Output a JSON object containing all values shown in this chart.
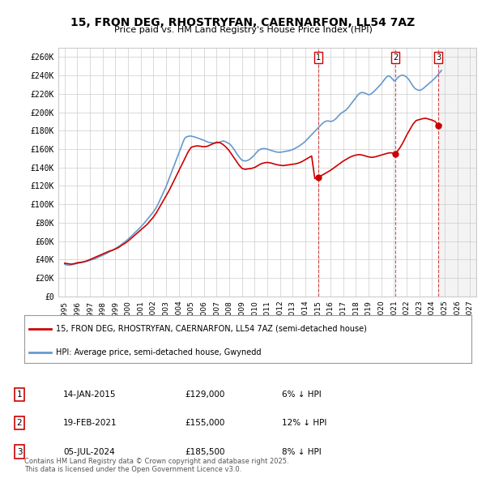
{
  "title": "15, FRON DEG, RHOSTRYFAN, CAERNARFON, LL54 7AZ",
  "subtitle": "Price paid vs. HM Land Registry's House Price Index (HPI)",
  "ylabel_ticks": [
    "£0",
    "£20K",
    "£40K",
    "£60K",
    "£80K",
    "£100K",
    "£120K",
    "£140K",
    "£160K",
    "£180K",
    "£200K",
    "£220K",
    "£240K",
    "£260K"
  ],
  "ytick_values": [
    0,
    20000,
    40000,
    60000,
    80000,
    100000,
    120000,
    140000,
    160000,
    180000,
    200000,
    220000,
    240000,
    260000
  ],
  "ylim": [
    0,
    270000
  ],
  "xlim_start": 1994.5,
  "xlim_end": 2027.5,
  "xtick_years": [
    1995,
    1996,
    1997,
    1998,
    1999,
    2000,
    2001,
    2002,
    2003,
    2004,
    2005,
    2006,
    2007,
    2008,
    2009,
    2010,
    2011,
    2012,
    2013,
    2014,
    2015,
    2016,
    2017,
    2018,
    2019,
    2020,
    2021,
    2022,
    2023,
    2024,
    2025,
    2026,
    2027
  ],
  "hpi_color": "#6699cc",
  "price_color": "#cc0000",
  "sale_marker_color": "#cc0000",
  "background_color": "#ffffff",
  "grid_color": "#cccccc",
  "legend_box_color": "#cc0000",
  "sales": [
    {
      "num": 1,
      "date_num": 2015.04,
      "price": 129000,
      "label": "1",
      "date_str": "14-JAN-2015",
      "price_str": "£129,000",
      "diff": "6% ↓ HPI"
    },
    {
      "num": 2,
      "date_num": 2021.13,
      "price": 155000,
      "label": "2",
      "date_str": "19-FEB-2021",
      "price_str": "£155,000",
      "diff": "12% ↓ HPI"
    },
    {
      "num": 3,
      "date_num": 2024.51,
      "price": 185500,
      "label": "3",
      "date_str": "05-JUL-2024",
      "price_str": "£185,500",
      "diff": "8% ↓ HPI"
    }
  ],
  "hpi_data": {
    "years": [
      1995.0,
      1995.08,
      1995.17,
      1995.25,
      1995.33,
      1995.42,
      1995.5,
      1995.58,
      1995.67,
      1995.75,
      1995.83,
      1995.92,
      1996.0,
      1996.08,
      1996.17,
      1996.25,
      1996.33,
      1996.42,
      1996.5,
      1996.58,
      1996.67,
      1996.75,
      1996.83,
      1996.92,
      1997.0,
      1997.08,
      1997.17,
      1997.25,
      1997.33,
      1997.42,
      1997.5,
      1997.58,
      1997.67,
      1997.75,
      1997.83,
      1997.92,
      1998.0,
      1998.08,
      1998.17,
      1998.25,
      1998.33,
      1998.42,
      1998.5,
      1998.58,
      1998.67,
      1998.75,
      1998.83,
      1998.92,
      1999.0,
      1999.08,
      1999.17,
      1999.25,
      1999.33,
      1999.42,
      1999.5,
      1999.58,
      1999.67,
      1999.75,
      1999.83,
      1999.92,
      2000.0,
      2000.08,
      2000.17,
      2000.25,
      2000.33,
      2000.42,
      2000.5,
      2000.58,
      2000.67,
      2000.75,
      2000.83,
      2000.92,
      2001.0,
      2001.08,
      2001.17,
      2001.25,
      2001.33,
      2001.42,
      2001.5,
      2001.58,
      2001.67,
      2001.75,
      2001.83,
      2001.92,
      2002.0,
      2002.08,
      2002.17,
      2002.25,
      2002.33,
      2002.42,
      2002.5,
      2002.58,
      2002.67,
      2002.75,
      2002.83,
      2002.92,
      2003.0,
      2003.08,
      2003.17,
      2003.25,
      2003.33,
      2003.42,
      2003.5,
      2003.58,
      2003.67,
      2003.75,
      2003.83,
      2003.92,
      2004.0,
      2004.08,
      2004.17,
      2004.25,
      2004.33,
      2004.42,
      2004.5,
      2004.58,
      2004.67,
      2004.75,
      2004.83,
      2004.92,
      2005.0,
      2005.08,
      2005.17,
      2005.25,
      2005.33,
      2005.42,
      2005.5,
      2005.58,
      2005.67,
      2005.75,
      2005.83,
      2005.92,
      2006.0,
      2006.08,
      2006.17,
      2006.25,
      2006.33,
      2006.42,
      2006.5,
      2006.58,
      2006.67,
      2006.75,
      2006.83,
      2006.92,
      2007.0,
      2007.08,
      2007.17,
      2007.25,
      2007.33,
      2007.42,
      2007.5,
      2007.58,
      2007.67,
      2007.75,
      2007.83,
      2007.92,
      2008.0,
      2008.08,
      2008.17,
      2008.25,
      2008.33,
      2008.42,
      2008.5,
      2008.58,
      2008.67,
      2008.75,
      2008.83,
      2008.92,
      2009.0,
      2009.08,
      2009.17,
      2009.25,
      2009.33,
      2009.42,
      2009.5,
      2009.58,
      2009.67,
      2009.75,
      2009.83,
      2009.92,
      2010.0,
      2010.08,
      2010.17,
      2010.25,
      2010.33,
      2010.42,
      2010.5,
      2010.58,
      2010.67,
      2010.75,
      2010.83,
      2010.92,
      2011.0,
      2011.08,
      2011.17,
      2011.25,
      2011.33,
      2011.42,
      2011.5,
      2011.58,
      2011.67,
      2011.75,
      2011.83,
      2011.92,
      2012.0,
      2012.08,
      2012.17,
      2012.25,
      2012.33,
      2012.42,
      2012.5,
      2012.58,
      2012.67,
      2012.75,
      2012.83,
      2012.92,
      2013.0,
      2013.08,
      2013.17,
      2013.25,
      2013.33,
      2013.42,
      2013.5,
      2013.58,
      2013.67,
      2013.75,
      2013.83,
      2013.92,
      2014.0,
      2014.08,
      2014.17,
      2014.25,
      2014.33,
      2014.42,
      2014.5,
      2014.58,
      2014.67,
      2014.75,
      2014.83,
      2014.92,
      2015.0,
      2015.08,
      2015.17,
      2015.25,
      2015.33,
      2015.42,
      2015.5,
      2015.58,
      2015.67,
      2015.75,
      2015.83,
      2015.92,
      2016.0,
      2016.08,
      2016.17,
      2016.25,
      2016.33,
      2016.42,
      2016.5,
      2016.58,
      2016.67,
      2016.75,
      2016.83,
      2016.92,
      2017.0,
      2017.08,
      2017.17,
      2017.25,
      2017.33,
      2017.42,
      2017.5,
      2017.58,
      2017.67,
      2017.75,
      2017.83,
      2017.92,
      2018.0,
      2018.08,
      2018.17,
      2018.25,
      2018.33,
      2018.42,
      2018.5,
      2018.58,
      2018.67,
      2018.75,
      2018.83,
      2018.92,
      2019.0,
      2019.08,
      2019.17,
      2019.25,
      2019.33,
      2019.42,
      2019.5,
      2019.58,
      2019.67,
      2019.75,
      2019.83,
      2019.92,
      2020.0,
      2020.08,
      2020.17,
      2020.25,
      2020.33,
      2020.42,
      2020.5,
      2020.58,
      2020.67,
      2020.75,
      2020.83,
      2020.92,
      2021.0,
      2021.08,
      2021.17,
      2021.25,
      2021.33,
      2021.42,
      2021.5,
      2021.58,
      2021.67,
      2021.75,
      2021.83,
      2021.92,
      2022.0,
      2022.08,
      2022.17,
      2022.25,
      2022.33,
      2022.42,
      2022.5,
      2022.58,
      2022.67,
      2022.75,
      2022.83,
      2022.92,
      2023.0,
      2023.08,
      2023.17,
      2023.25,
      2023.33,
      2023.42,
      2023.5,
      2023.58,
      2023.67,
      2023.75,
      2023.83,
      2023.92,
      2024.0,
      2024.08,
      2024.17,
      2024.25,
      2024.33,
      2024.42,
      2024.5,
      2024.58,
      2024.67,
      2024.75
    ],
    "values": [
      35000,
      34500,
      34200,
      34000,
      33800,
      34000,
      34200,
      34500,
      34800,
      35000,
      35200,
      35500,
      35800,
      36000,
      36200,
      36500,
      36800,
      37000,
      37300,
      37600,
      37900,
      38200,
      38500,
      38800,
      39100,
      39400,
      39800,
      40200,
      40600,
      41100,
      41600,
      42100,
      42600,
      43100,
      43600,
      44100,
      44600,
      45100,
      45700,
      46300,
      46900,
      47500,
      48100,
      48700,
      49300,
      49900,
      50500,
      51100,
      51800,
      52500,
      53200,
      54000,
      54800,
      55600,
      56500,
      57400,
      58300,
      59200,
      60100,
      61000,
      62000,
      63000,
      64100,
      65200,
      66300,
      67400,
      68500,
      69600,
      70700,
      71800,
      72900,
      74000,
      75200,
      76400,
      77700,
      79000,
      80400,
      81800,
      83200,
      84600,
      86000,
      87400,
      88800,
      90200,
      91700,
      93200,
      95000,
      97000,
      99000,
      101500,
      104000,
      106500,
      109000,
      111500,
      114000,
      116500,
      119000,
      122000,
      125000,
      128000,
      131000,
      134000,
      137000,
      140000,
      143000,
      146000,
      149000,
      152000,
      155000,
      158000,
      161000,
      164000,
      167000,
      170000,
      172000,
      173000,
      173500,
      173800,
      174000,
      174200,
      174000,
      173800,
      173500,
      173200,
      172800,
      172400,
      172000,
      171600,
      171200,
      170800,
      170400,
      170000,
      169500,
      169000,
      168500,
      168000,
      167500,
      167200,
      167000,
      166800,
      166700,
      166600,
      166500,
      166400,
      166500,
      166700,
      167000,
      167500,
      168000,
      168500,
      168800,
      168600,
      168200,
      167600,
      167000,
      166400,
      165800,
      164800,
      163500,
      162000,
      160500,
      158800,
      157000,
      155200,
      153500,
      152000,
      150500,
      149200,
      148000,
      147500,
      147200,
      147000,
      147200,
      147500,
      148000,
      148700,
      149500,
      150500,
      151500,
      152600,
      153800,
      155200,
      156600,
      157800,
      158800,
      159500,
      160000,
      160300,
      160500,
      160600,
      160500,
      160300,
      160000,
      159600,
      159200,
      158800,
      158400,
      158000,
      157600,
      157300,
      157000,
      156800,
      156600,
      156500,
      156500,
      156600,
      156800,
      157000,
      157200,
      157400,
      157600,
      157800,
      158000,
      158300,
      158600,
      159000,
      159500,
      160000,
      160600,
      161200,
      161800,
      162500,
      163200,
      164000,
      164800,
      165600,
      166500,
      167400,
      168500,
      169600,
      170800,
      172000,
      173200,
      174400,
      175600,
      176800,
      178000,
      179200,
      180400,
      181600,
      182800,
      184000,
      185200,
      186400,
      187600,
      188600,
      189400,
      190000,
      190400,
      190600,
      190500,
      190200,
      190000,
      190200,
      190600,
      191200,
      192000,
      193000,
      194200,
      195500,
      196800,
      198000,
      199000,
      199800,
      200500,
      201200,
      202000,
      203000,
      204200,
      205500,
      207000,
      208500,
      210000,
      211500,
      213000,
      214500,
      216000,
      217500,
      219000,
      220000,
      220800,
      221300,
      221500,
      221300,
      221000,
      220500,
      220000,
      219500,
      219000,
      219200,
      219800,
      220500,
      221500,
      222500,
      223600,
      224800,
      226000,
      227200,
      228400,
      229600,
      231000,
      232500,
      234000,
      235500,
      237000,
      238300,
      239200,
      239500,
      239000,
      238000,
      236800,
      235500,
      234000,
      234500,
      235500,
      236800,
      238000,
      239000,
      239600,
      240000,
      240200,
      240000,
      239600,
      239000,
      238200,
      237000,
      235500,
      233800,
      232000,
      230200,
      228500,
      227000,
      225800,
      225000,
      224500,
      224000,
      223800,
      224000,
      224500,
      225200,
      226000,
      227000,
      228000,
      229000,
      230000,
      231000,
      232000,
      233000,
      234000,
      235000,
      236000,
      237200,
      238500,
      239800,
      241200,
      242600,
      244000,
      245400
    ]
  },
  "price_data": {
    "years": [
      1995.0,
      1995.25,
      1995.5,
      1995.75,
      1996.0,
      1996.25,
      1996.5,
      1996.75,
      1997.0,
      1997.25,
      1997.5,
      1997.75,
      1998.0,
      1998.25,
      1998.5,
      1998.75,
      1999.0,
      1999.25,
      1999.5,
      1999.75,
      2000.0,
      2000.25,
      2000.5,
      2000.75,
      2001.0,
      2001.25,
      2001.5,
      2001.75,
      2002.0,
      2002.25,
      2002.5,
      2002.75,
      2003.0,
      2003.25,
      2003.5,
      2003.75,
      2004.0,
      2004.25,
      2004.5,
      2004.75,
      2005.0,
      2005.25,
      2005.5,
      2005.75,
      2006.0,
      2006.25,
      2006.5,
      2006.75,
      2007.0,
      2007.25,
      2007.5,
      2007.75,
      2008.0,
      2008.25,
      2008.5,
      2008.75,
      2009.0,
      2009.25,
      2009.5,
      2009.75,
      2010.0,
      2010.25,
      2010.5,
      2010.75,
      2011.0,
      2011.25,
      2011.5,
      2011.75,
      2012.0,
      2012.25,
      2012.5,
      2012.75,
      2013.0,
      2013.25,
      2013.5,
      2013.75,
      2014.0,
      2014.25,
      2014.5,
      2014.75,
      2015.04,
      2015.25,
      2015.5,
      2015.75,
      2016.0,
      2016.25,
      2016.5,
      2016.75,
      2017.0,
      2017.25,
      2017.5,
      2017.75,
      2018.0,
      2018.25,
      2018.5,
      2018.75,
      2019.0,
      2019.25,
      2019.5,
      2019.75,
      2020.0,
      2020.25,
      2020.5,
      2020.75,
      2021.13,
      2021.5,
      2021.75,
      2022.0,
      2022.25,
      2022.5,
      2022.75,
      2023.0,
      2023.25,
      2023.5,
      2023.75,
      2024.0,
      2024.25,
      2024.51,
      2024.75
    ],
    "values": [
      36000,
      35500,
      35000,
      35500,
      36500,
      37000,
      37500,
      38500,
      40000,
      41500,
      43000,
      44500,
      46000,
      47500,
      49000,
      50000,
      51500,
      53000,
      55500,
      57500,
      60000,
      63000,
      66000,
      69000,
      72000,
      75000,
      78000,
      82000,
      86000,
      91000,
      97000,
      103000,
      109000,
      115000,
      122000,
      129000,
      136000,
      143000,
      150000,
      157000,
      162000,
      163000,
      163500,
      163000,
      162500,
      163000,
      164500,
      166000,
      167500,
      167000,
      165000,
      162000,
      158000,
      153000,
      148000,
      143000,
      139000,
      138000,
      138500,
      139000,
      140000,
      142000,
      144000,
      145000,
      145500,
      145000,
      144000,
      143000,
      142500,
      142000,
      142500,
      143000,
      143500,
      144000,
      145000,
      146500,
      148500,
      150500,
      152500,
      128000,
      129000,
      131000,
      133000,
      135000,
      137000,
      139500,
      142000,
      144500,
      147000,
      149000,
      151000,
      152500,
      153500,
      154000,
      153500,
      152500,
      151500,
      151000,
      151500,
      152500,
      153500,
      154500,
      155500,
      156000,
      155000,
      162000,
      168000,
      175000,
      181000,
      187000,
      191000,
      192000,
      193000,
      193500,
      192500,
      191500,
      190000,
      185500,
      186000
    ]
  },
  "legend_text_line1": "15, FRON DEG, RHOSTRYFAN, CAERNARFON, LL54 7AZ (semi-detached house)",
  "legend_text_line2": "HPI: Average price, semi-detached house, Gwynedd",
  "footer_text": "Contains HM Land Registry data © Crown copyright and database right 2025.\nThis data is licensed under the Open Government Licence v3.0.",
  "shaded_region_start": 2024.51,
  "shaded_region_end": 2027.5
}
